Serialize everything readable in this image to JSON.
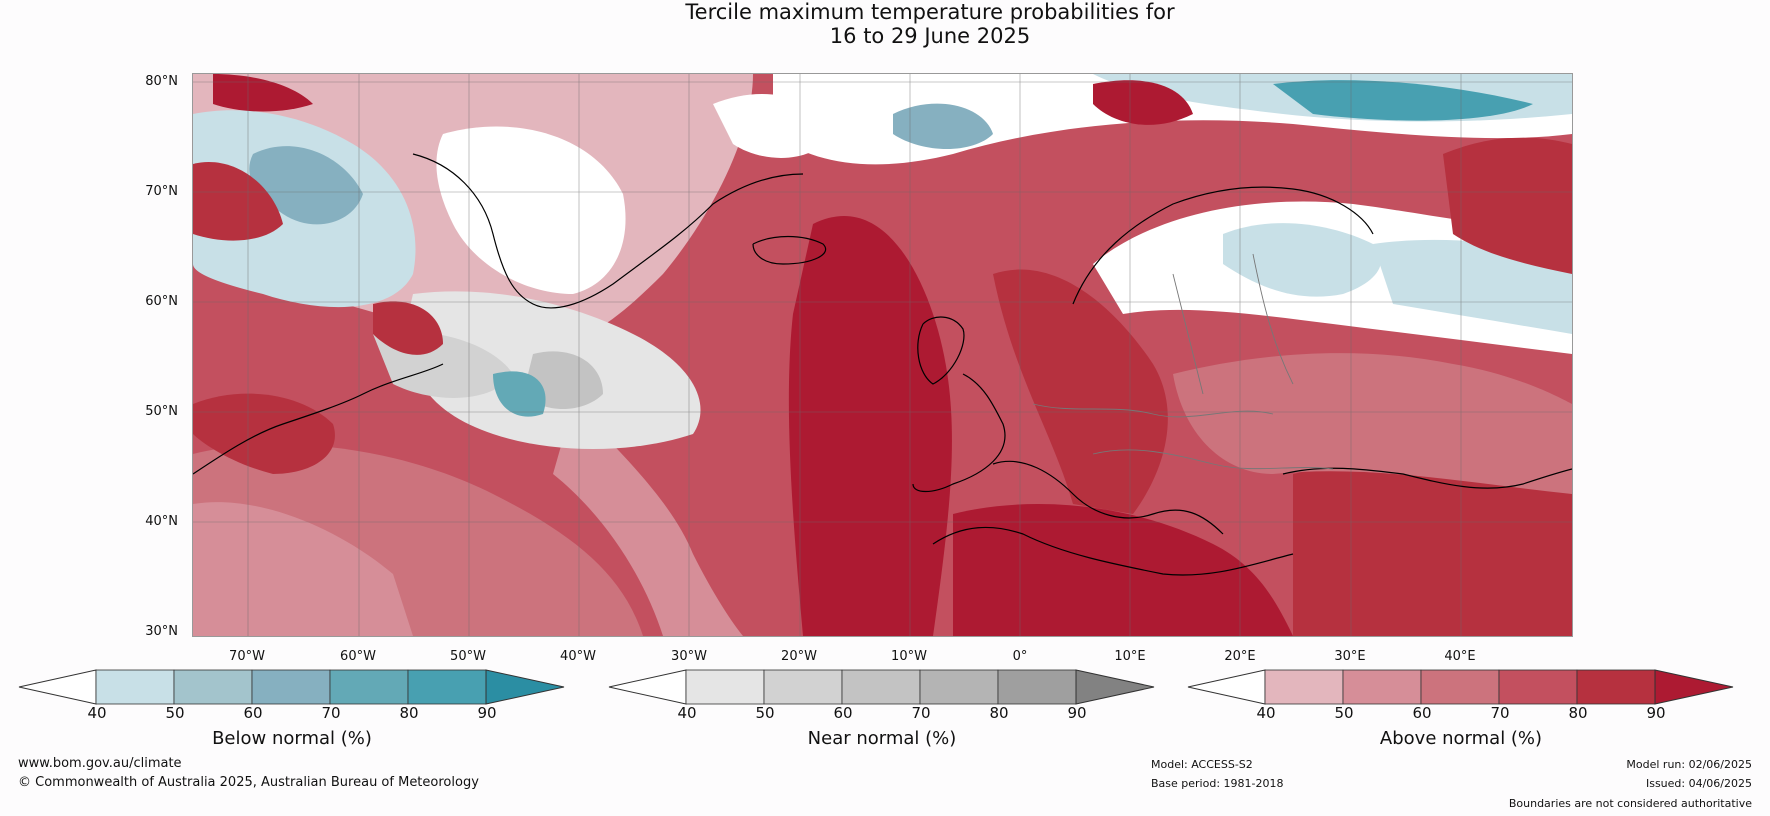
{
  "title_line1": "Tercile maximum temperature probabilities for",
  "title_line2": "16 to 29 June 2025",
  "lat_labels": [
    "80°N",
    "70°N",
    "60°N",
    "50°N",
    "40°N",
    "30°N"
  ],
  "lon_labels": [
    "70°W",
    "60°W",
    "50°W",
    "40°W",
    "30°W",
    "20°W",
    "10°W",
    "0°",
    "10°E",
    "20°E",
    "30°E",
    "40°E"
  ],
  "colorbars": [
    {
      "title": "Below normal (%)",
      "ticks": [
        "40",
        "50",
        "60",
        "70",
        "80",
        "90"
      ],
      "colors": [
        "#ffffff",
        "#c8e0e7",
        "#a3c4cc",
        "#86b0c0",
        "#63a9b6",
        "#48a0b1",
        "#2b8ea3"
      ]
    },
    {
      "title": "Near normal (%)",
      "ticks": [
        "40",
        "50",
        "60",
        "70",
        "80",
        "90"
      ],
      "colors": [
        "#ffffff",
        "#e5e5e5",
        "#d2d2d2",
        "#c3c3c3",
        "#b4b4b4",
        "#9f9f9f",
        "#828282"
      ]
    },
    {
      "title": "Above normal (%)",
      "ticks": [
        "40",
        "50",
        "60",
        "70",
        "80",
        "90"
      ],
      "colors": [
        "#ffffff",
        "#e3b6bd",
        "#d68e98",
        "#cc737d",
        "#c3505f",
        "#b6313f",
        "#ad1a32"
      ]
    }
  ],
  "footer": {
    "url": "www.bom.gov.au/climate",
    "copyright": "© Commonwealth of Australia 2025, Australian Bureau of Meteorology",
    "model": "Model: ACCESS-S2",
    "base_period": "Base period: 1981-2018",
    "model_run": "Model run: 02/06/2025",
    "issued": "Issued: 04/06/2025",
    "disclaimer": "Boundaries are not considered authoritative"
  }
}
